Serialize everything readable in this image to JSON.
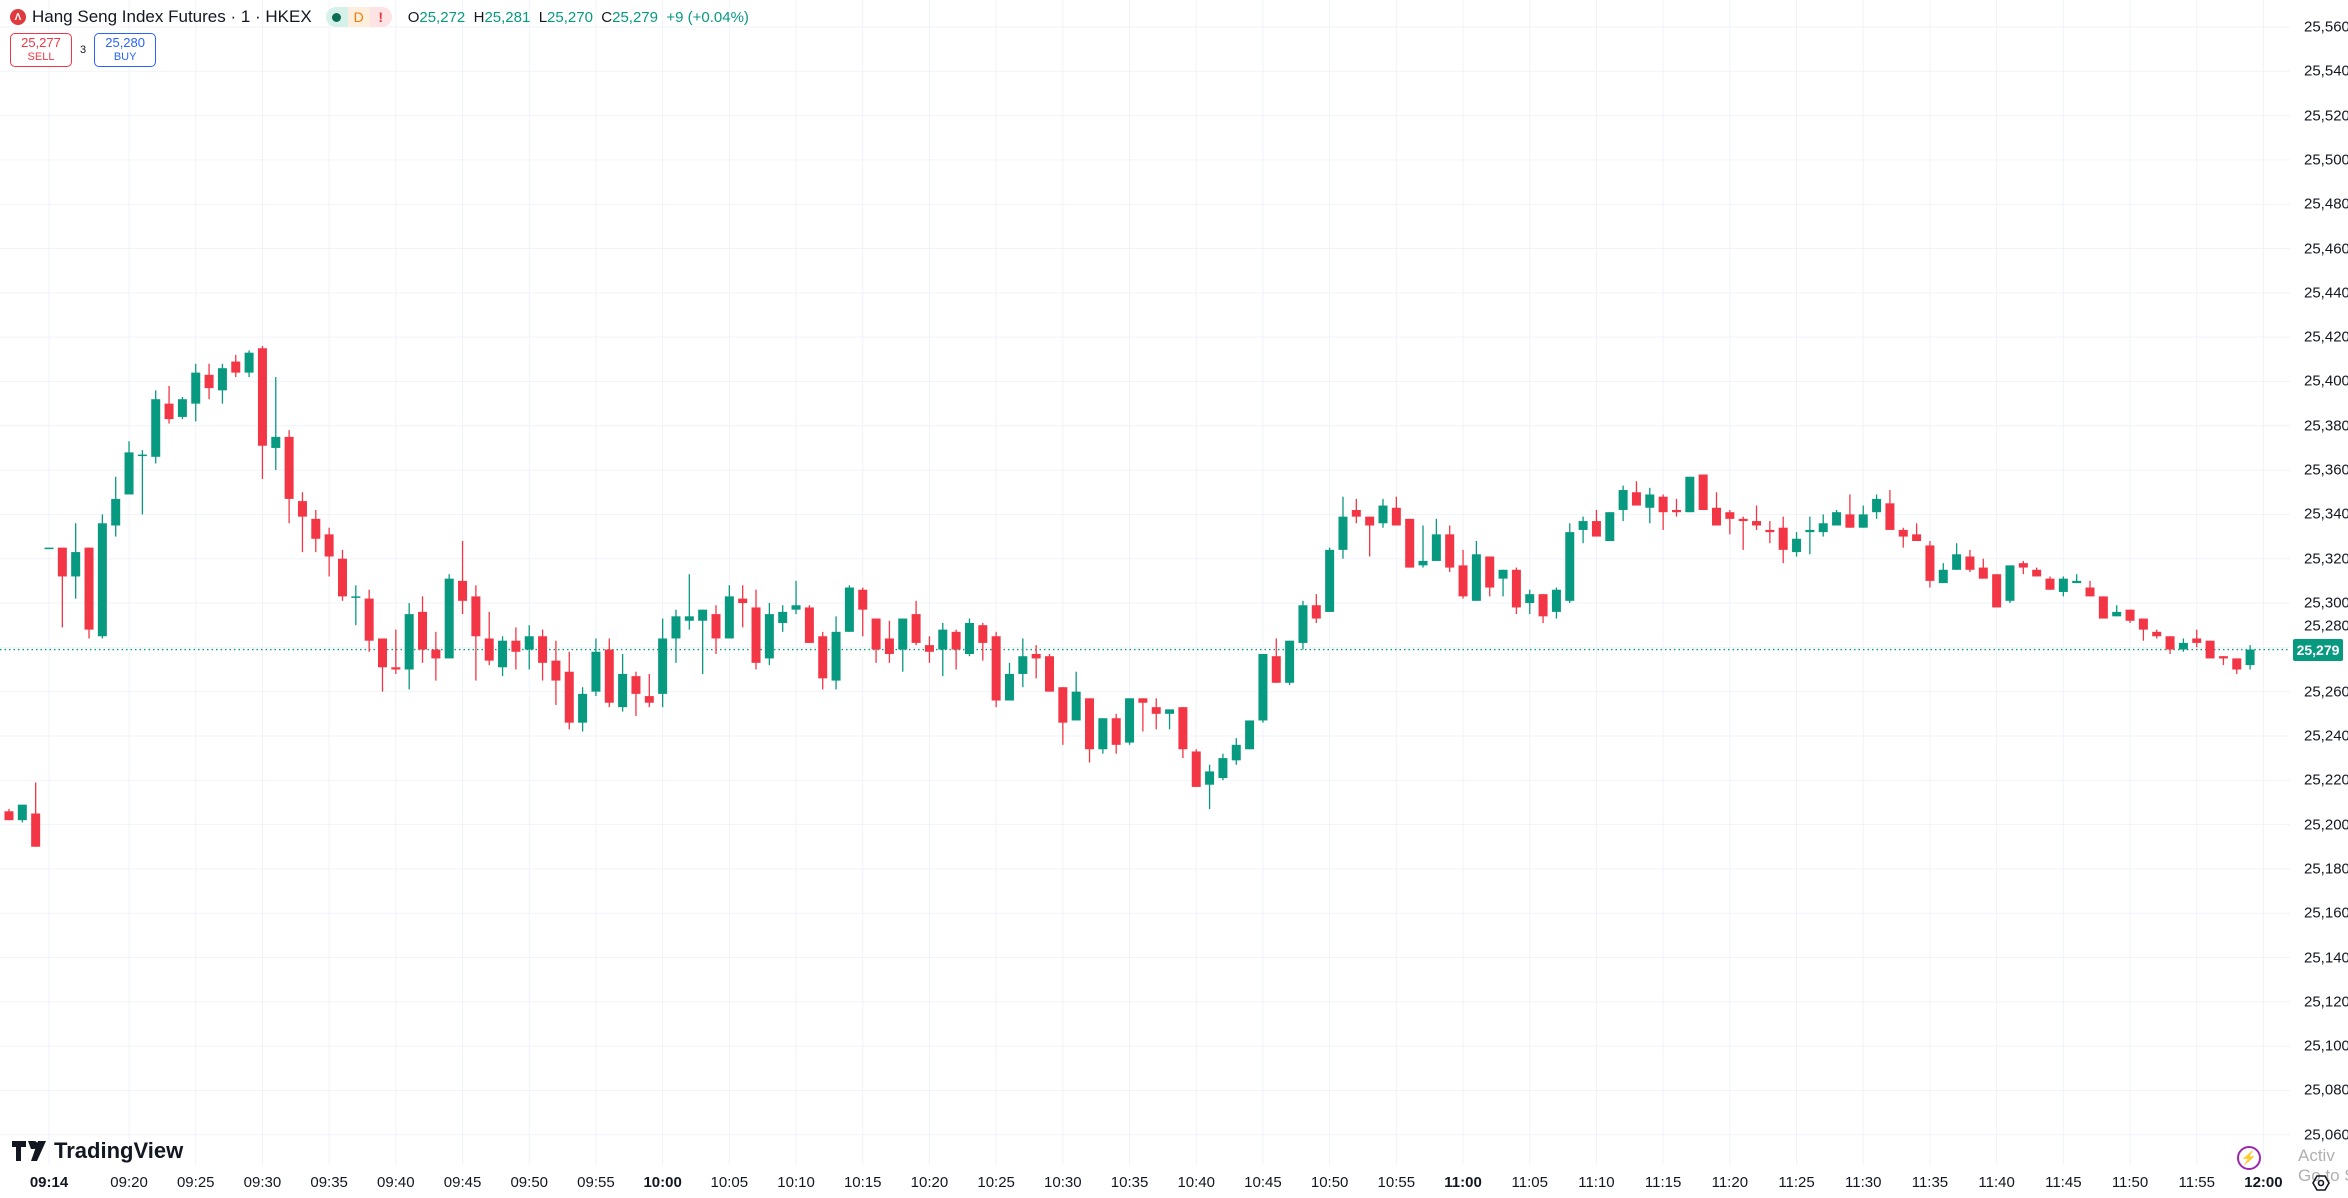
{
  "legend": {
    "symbol_icon": "hkex-logo-icon",
    "title": "Hang Seng Index Futures · 1 · HKEX",
    "status_pills": [
      {
        "icon": "market-open-dot-icon"
      },
      {
        "label": "D"
      },
      {
        "label": "!"
      }
    ],
    "o_label": "O",
    "o": "25,272",
    "h_label": "H",
    "h": "25,281",
    "l_label": "L",
    "l": "25,270",
    "c_label": "C",
    "c": "25,279",
    "change": "+9 (+0.04%)"
  },
  "trade": {
    "sell_price": "25,277",
    "sell_label": "SELL",
    "spread": "3",
    "buy_price": "25,280",
    "buy_label": "BUY"
  },
  "brand": "TradingView",
  "last_price": "25,279",
  "watermark": {
    "line1": "Activ",
    "line2": "Go to S"
  },
  "icons": {
    "bolt": "lightning-icon",
    "settings": "settings-icon"
  },
  "colors": {
    "up": "#089981",
    "down": "#f23645",
    "grid": "#f0f3fa"
  },
  "chart_data": {
    "type": "candlestick",
    "interval": "1 minute",
    "ylim": [
      25050,
      25570
    ],
    "y_ticks": [
      "25,560",
      "25,540",
      "25,520",
      "25,500",
      "25,480",
      "25,460",
      "25,440",
      "25,420",
      "25,400",
      "25,380",
      "25,360",
      "25,340",
      "25,320",
      "25,300",
      "25,280",
      "25,260",
      "25,240",
      "25,220",
      "25,200",
      "25,180",
      "25,160",
      "25,140",
      "25,120",
      "25,100",
      "25,080",
      "25,060"
    ],
    "x_ticks": [
      {
        "t": "09:14",
        "bold": true
      },
      {
        "t": "09:20"
      },
      {
        "t": "09:25"
      },
      {
        "t": "09:30"
      },
      {
        "t": "09:35"
      },
      {
        "t": "09:40"
      },
      {
        "t": "09:45"
      },
      {
        "t": "09:50"
      },
      {
        "t": "09:55"
      },
      {
        "t": "10:00",
        "bold": true
      },
      {
        "t": "10:05"
      },
      {
        "t": "10:10"
      },
      {
        "t": "10:15"
      },
      {
        "t": "10:20"
      },
      {
        "t": "10:25"
      },
      {
        "t": "10:30"
      },
      {
        "t": "10:35"
      },
      {
        "t": "10:40"
      },
      {
        "t": "10:45"
      },
      {
        "t": "10:50"
      },
      {
        "t": "10:55"
      },
      {
        "t": "11:00",
        "bold": true
      },
      {
        "t": "11:05"
      },
      {
        "t": "11:10"
      },
      {
        "t": "11:15"
      },
      {
        "t": "11:20"
      },
      {
        "t": "11:25"
      },
      {
        "t": "11:30"
      },
      {
        "t": "11:35"
      },
      {
        "t": "11:40"
      },
      {
        "t": "11:45"
      },
      {
        "t": "11:50"
      },
      {
        "t": "11:55"
      },
      {
        "t": "12:00",
        "bold": true
      }
    ],
    "columns": [
      "time",
      "open",
      "high",
      "low",
      "close"
    ],
    "candles": [
      [
        "09:11",
        25206,
        25207,
        25202,
        25202
      ],
      [
        "09:12",
        25202,
        25209,
        25201,
        25209
      ],
      [
        "09:13",
        25205,
        25219,
        25190,
        25190
      ],
      [
        "09:14",
        25325,
        25325,
        25325,
        25325
      ],
      [
        "09:15",
        25325,
        25325,
        25289,
        25312
      ],
      [
        "09:16",
        25312,
        25336,
        25302,
        25323
      ],
      [
        "09:17",
        25325,
        25325,
        25284,
        25288
      ],
      [
        "09:18",
        25285,
        25340,
        25284,
        25336
      ],
      [
        "09:19",
        25335,
        25357,
        25330,
        25347
      ],
      [
        "09:20",
        25349,
        25373,
        25349,
        25368
      ],
      [
        "09:21",
        25367,
        25369,
        25340,
        25367
      ],
      [
        "09:22",
        25366,
        25396,
        25363,
        25392
      ],
      [
        "09:23",
        25390,
        25398,
        25381,
        25383
      ],
      [
        "09:24",
        25384,
        25393,
        25383,
        25392
      ],
      [
        "09:25",
        25390,
        25408,
        25382,
        25404
      ],
      [
        "09:26",
        25403,
        25408,
        25392,
        25397
      ],
      [
        "09:27",
        25396,
        25408,
        25390,
        25406
      ],
      [
        "09:28",
        25409,
        25412,
        25402,
        25404
      ],
      [
        "09:29",
        25404,
        25414,
        25402,
        25413
      ],
      [
        "09:30",
        25415,
        25416,
        25356,
        25371
      ],
      [
        "09:31",
        25370,
        25402,
        25360,
        25375
      ],
      [
        "09:32",
        25375,
        25378,
        25336,
        25347
      ],
      [
        "09:33",
        25346,
        25350,
        25323,
        25339
      ],
      [
        "09:34",
        25338,
        25342,
        25323,
        25329
      ],
      [
        "09:35",
        25331,
        25334,
        25312,
        25321
      ],
      [
        "09:36",
        25320,
        25324,
        25301,
        25303
      ],
      [
        "09:37",
        25303,
        25308,
        25290,
        25303
      ],
      [
        "09:38",
        25302,
        25306,
        25278,
        25283
      ],
      [
        "09:39",
        25284,
        25284,
        25260,
        25271
      ],
      [
        "09:40",
        25271,
        25288,
        25268,
        25270
      ],
      [
        "09:41",
        25270,
        25300,
        25261,
        25295
      ],
      [
        "09:42",
        25296,
        25303,
        25273,
        25279
      ],
      [
        "09:43",
        25279,
        25287,
        25265,
        25275
      ],
      [
        "09:44",
        25275,
        25313,
        25275,
        25311
      ],
      [
        "09:45",
        25310,
        25328,
        25295,
        25301
      ],
      [
        "09:46",
        25303,
        25308,
        25265,
        25285
      ],
      [
        "09:47",
        25284,
        25296,
        25272,
        25274
      ],
      [
        "09:48",
        25271,
        25285,
        25267,
        25283
      ],
      [
        "09:49",
        25283,
        25289,
        25270,
        25278
      ],
      [
        "09:50",
        25279,
        25290,
        25270,
        25285
      ],
      [
        "09:51",
        25285,
        25288,
        25265,
        25273
      ],
      [
        "09:52",
        25274,
        25283,
        25254,
        25265
      ],
      [
        "09:53",
        25269,
        25278,
        25243,
        25246
      ],
      [
        "09:54",
        25246,
        25262,
        25242,
        25259
      ],
      [
        "09:55",
        25260,
        25284,
        25258,
        25278
      ],
      [
        "09:56",
        25279,
        25284,
        25253,
        25255
      ],
      [
        "09:57",
        25253,
        25277,
        25251,
        25268
      ],
      [
        "09:58",
        25267,
        25269,
        25249,
        25259
      ],
      [
        "09:59",
        25258,
        25268,
        25253,
        25255
      ],
      [
        "10:00",
        25259,
        25293,
        25253,
        25284
      ],
      [
        "10:01",
        25284,
        25297,
        25273,
        25294
      ],
      [
        "10:02",
        25292,
        25313,
        25288,
        25294
      ],
      [
        "10:03",
        25292,
        25297,
        25268,
        25297
      ],
      [
        "10:04",
        25295,
        25299,
        25277,
        25284
      ],
      [
        "10:05",
        25284,
        25308,
        25284,
        25303
      ],
      [
        "10:06",
        25302,
        25308,
        25289,
        25300
      ],
      [
        "10:07",
        25298,
        25306,
        25270,
        25273
      ],
      [
        "10:08",
        25275,
        25300,
        25272,
        25295
      ],
      [
        "10:09",
        25291,
        25299,
        25287,
        25296
      ],
      [
        "10:10",
        25297,
        25310,
        25295,
        25299
      ],
      [
        "10:11",
        25298,
        25299,
        25282,
        25282
      ],
      [
        "10:12",
        25285,
        25287,
        25261,
        25266
      ],
      [
        "10:13",
        25265,
        25294,
        25261,
        25287
      ],
      [
        "10:14",
        25287,
        25308,
        25287,
        25307
      ],
      [
        "10:15",
        25306,
        25307,
        25285,
        25297
      ],
      [
        "10:16",
        25293,
        25293,
        25273,
        25279
      ],
      [
        "10:17",
        25284,
        25292,
        25273,
        25277
      ],
      [
        "10:18",
        25279,
        25293,
        25269,
        25293
      ],
      [
        "10:19",
        25295,
        25301,
        25281,
        25282
      ],
      [
        "10:20",
        25281,
        25285,
        25273,
        25278
      ],
      [
        "10:21",
        25279,
        25291,
        25267,
        25288
      ],
      [
        "10:22",
        25287,
        25288,
        25270,
        25279
      ],
      [
        "10:23",
        25277,
        25293,
        25276,
        25291
      ],
      [
        "10:24",
        25290,
        25291,
        25274,
        25282
      ],
      [
        "10:25",
        25285,
        25287,
        25253,
        25256
      ],
      [
        "10:26",
        25256,
        25273,
        25256,
        25268
      ],
      [
        "10:27",
        25268,
        25284,
        25262,
        25276
      ],
      [
        "10:28",
        25277,
        25281,
        25266,
        25275
      ],
      [
        "10:29",
        25276,
        25277,
        25260,
        25260
      ],
      [
        "10:30",
        25262,
        25262,
        25236,
        25246
      ],
      [
        "10:31",
        25247,
        25269,
        25247,
        25260
      ],
      [
        "10:32",
        25257,
        25257,
        25228,
        25234
      ],
      [
        "10:33",
        25234,
        25248,
        25232,
        25248
      ],
      [
        "10:34",
        25248,
        25250,
        25232,
        25236
      ],
      [
        "10:35",
        25237,
        25257,
        25236,
        25257
      ],
      [
        "10:36",
        25257,
        25257,
        25242,
        25255
      ],
      [
        "10:37",
        25253,
        25257,
        25243,
        25250
      ],
      [
        "10:38",
        25250,
        25252,
        25243,
        25252
      ],
      [
        "10:39",
        25253,
        25253,
        25230,
        25234
      ],
      [
        "10:40",
        25233,
        25234,
        25217,
        25217
      ],
      [
        "10:41",
        25218,
        25227,
        25207,
        25224
      ],
      [
        "10:42",
        25221,
        25232,
        25220,
        25230
      ],
      [
        "10:43",
        25229,
        25239,
        25227,
        25236
      ],
      [
        "10:44",
        25234,
        25247,
        25234,
        25247
      ],
      [
        "10:45",
        25247,
        25277,
        25246,
        25277
      ],
      [
        "10:46",
        25276,
        25284,
        25264,
        25264
      ],
      [
        "10:47",
        25264,
        25283,
        25263,
        25283
      ],
      [
        "10:48",
        25282,
        25301,
        25279,
        25299
      ],
      [
        "10:49",
        25299,
        25304,
        25291,
        25293
      ],
      [
        "10:50",
        25296,
        25325,
        25296,
        25324
      ],
      [
        "10:51",
        25324,
        25348,
        25320,
        25339
      ],
      [
        "10:52",
        25342,
        25347,
        25336,
        25339
      ],
      [
        "10:53",
        25339,
        25339,
        25321,
        25335
      ],
      [
        "10:54",
        25336,
        25347,
        25334,
        25344
      ],
      [
        "10:55",
        25343,
        25348,
        25335,
        25335
      ],
      [
        "10:56",
        25338,
        25338,
        25316,
        25316
      ],
      [
        "10:57",
        25317,
        25335,
        25316,
        25319
      ],
      [
        "10:58",
        25319,
        25338,
        25319,
        25331
      ],
      [
        "10:59",
        25331,
        25335,
        25314,
        25316
      ],
      [
        "11:00",
        25317,
        25324,
        25302,
        25303
      ],
      [
        "11:01",
        25301,
        25328,
        25301,
        25322
      ],
      [
        "11:02",
        25321,
        25321,
        25303,
        25307
      ],
      [
        "11:03",
        25311,
        25315,
        25303,
        25315
      ],
      [
        "11:04",
        25315,
        25316,
        25295,
        25298
      ],
      [
        "11:05",
        25300,
        25306,
        25295,
        25304
      ],
      [
        "11:06",
        25304,
        25304,
        25291,
        25294
      ],
      [
        "11:07",
        25296,
        25307,
        25293,
        25306
      ],
      [
        "11:08",
        25301,
        25336,
        25300,
        25332
      ],
      [
        "11:09",
        25333,
        25339,
        25327,
        25337
      ],
      [
        "11:10",
        25337,
        25342,
        25330,
        25330
      ],
      [
        "11:11",
        25328,
        25341,
        25328,
        25341
      ],
      [
        "11:12",
        25342,
        25353,
        25337,
        25351
      ],
      [
        "11:13",
        25350,
        25355,
        25344,
        25344
      ],
      [
        "11:14",
        25343,
        25352,
        25336,
        25349
      ],
      [
        "11:15",
        25348,
        25349,
        25333,
        25341
      ],
      [
        "11:16",
        25342,
        25347,
        25339,
        25341
      ],
      [
        "11:17",
        25341,
        25357,
        25341,
        25357
      ],
      [
        "11:18",
        25358,
        25358,
        25342,
        25342
      ],
      [
        "11:19",
        25343,
        25350,
        25335,
        25335
      ],
      [
        "11:20",
        25341,
        25342,
        25331,
        25338
      ],
      [
        "11:21",
        25338,
        25339,
        25324,
        25337
      ],
      [
        "11:22",
        25337,
        25344,
        25333,
        25335
      ],
      [
        "11:23",
        25333,
        25337,
        25327,
        25332
      ],
      [
        "11:24",
        25334,
        25339,
        25318,
        25324
      ],
      [
        "11:25",
        25323,
        25332,
        25321,
        25329
      ],
      [
        "11:26",
        25332,
        25339,
        25322,
        25333
      ],
      [
        "11:27",
        25332,
        25340,
        25330,
        25336
      ],
      [
        "11:28",
        25335,
        25342,
        25335,
        25341
      ],
      [
        "11:29",
        25340,
        25349,
        25334,
        25334
      ],
      [
        "11:30",
        25334,
        25344,
        25334,
        25340
      ],
      [
        "11:31",
        25341,
        25349,
        25338,
        25347
      ],
      [
        "11:32",
        25345,
        25351,
        25333,
        25333
      ],
      [
        "11:33",
        25333,
        25334,
        25325,
        25330
      ],
      [
        "11:34",
        25331,
        25336,
        25328,
        25328
      ],
      [
        "11:35",
        25326,
        25328,
        25307,
        25310
      ],
      [
        "11:36",
        25309,
        25318,
        25309,
        25315
      ],
      [
        "11:37",
        25315,
        25327,
        25315,
        25322
      ],
      [
        "11:38",
        25321,
        25324,
        25314,
        25315
      ],
      [
        "11:39",
        25316,
        25320,
        25311,
        25311
      ],
      [
        "11:40",
        25313,
        25313,
        25298,
        25298
      ],
      [
        "11:41",
        25301,
        25317,
        25300,
        25317
      ],
      [
        "11:42",
        25318,
        25319,
        25313,
        25316
      ],
      [
        "11:43",
        25315,
        25316,
        25312,
        25312
      ],
      [
        "11:44",
        25311,
        25312,
        25306,
        25306
      ],
      [
        "11:45",
        25305,
        25312,
        25303,
        25311
      ],
      [
        "11:46",
        25309,
        25313,
        25309,
        25310
      ],
      [
        "11:47",
        25307,
        25310,
        25303,
        25303
      ],
      [
        "11:48",
        25303,
        25303,
        25293,
        25293
      ],
      [
        "11:49",
        25294,
        25299,
        25294,
        25296
      ],
      [
        "11:50",
        25297,
        25297,
        25291,
        25292
      ],
      [
        "11:51",
        25293,
        25293,
        25283,
        25288
      ],
      [
        "11:52",
        25287,
        25288,
        25284,
        25285
      ],
      [
        "11:53",
        25285,
        25285,
        25277,
        25279
      ],
      [
        "11:54",
        25279,
        25284,
        25278,
        25282
      ],
      [
        "11:55",
        25284,
        25288,
        25280,
        25282
      ],
      [
        "11:56",
        25283,
        25283,
        25275,
        25275
      ],
      [
        "11:57",
        25276,
        25276,
        25272,
        25275
      ],
      [
        "11:58",
        25275,
        25275,
        25268,
        25270
      ],
      [
        "11:59",
        25272,
        25281,
        25270,
        25279
      ]
    ],
    "last_price": 25279
  }
}
